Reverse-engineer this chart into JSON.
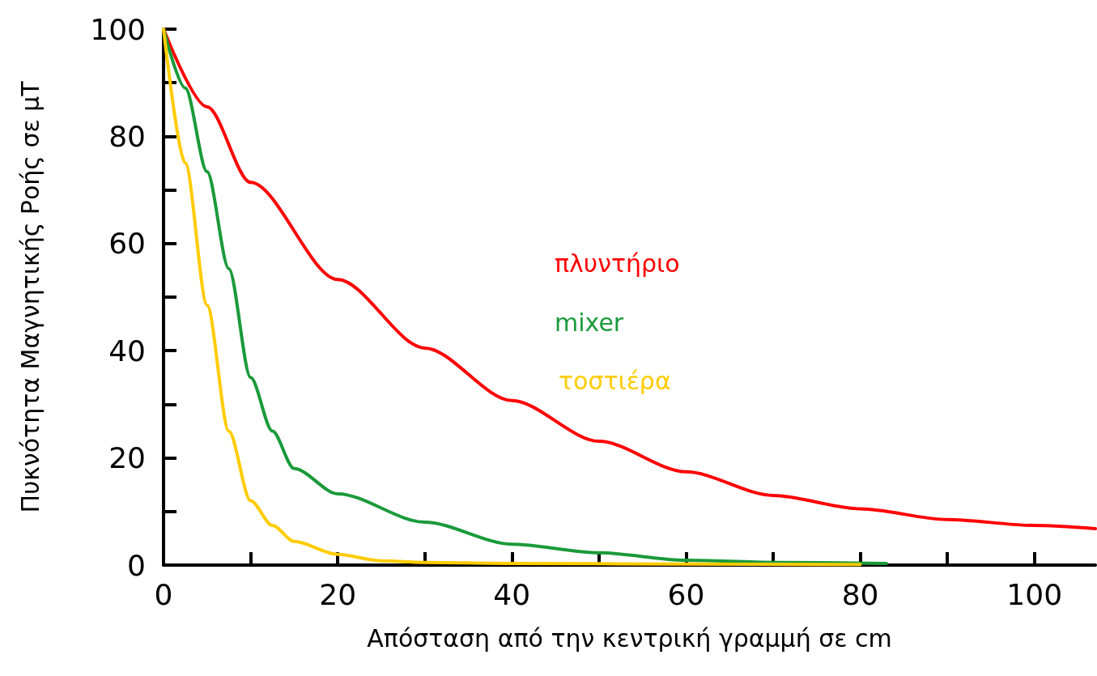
{
  "chart_data": {
    "type": "line",
    "xlabel": "Απόσταση από την κεντρική γραμμή σε cm",
    "ylabel": "Πυκνότητα Μαγνητικής Ροής σε μT",
    "xlim": [
      0,
      107
    ],
    "ylim": [
      0,
      100
    ],
    "xticks": [
      0,
      {
        "value": 10,
        "label": null
      },
      20,
      {
        "value": 30,
        "label": null
      },
      40,
      {
        "value": 50,
        "label": null
      },
      60,
      {
        "value": 70,
        "label": null
      },
      80,
      {
        "value": 90,
        "label": null
      },
      100
    ],
    "yticks": [
      0,
      {
        "value": 10,
        "label": null
      },
      20,
      {
        "value": 30,
        "label": null
      },
      40,
      {
        "value": 50,
        "label": null
      },
      60,
      {
        "value": 70,
        "label": null
      },
      80,
      {
        "value": 90,
        "label": null
      },
      100
    ],
    "grid": false,
    "legend": false,
    "marker": "none",
    "line_style": "solid",
    "series": [
      {
        "name": "πλυντήριο",
        "color": "#ff0000",
        "x": [
          0,
          5,
          10,
          20,
          30,
          40,
          50,
          60,
          70,
          80,
          90,
          100,
          107
        ],
        "values": [
          100,
          85.5,
          71.4,
          53.3,
          40.5,
          30.7,
          23.1,
          17.4,
          13,
          10.5,
          8.5,
          7.4,
          6.8
        ]
      },
      {
        "name": "mixer",
        "color": "#1a9a3a",
        "x": [
          0,
          2.5,
          5,
          7.5,
          10,
          12.5,
          15,
          20,
          30,
          40,
          50,
          60,
          70,
          83
        ],
        "values": [
          100,
          89,
          73.4,
          55.3,
          35,
          25,
          18,
          13.3,
          8,
          3.9,
          2.3,
          0.9,
          0.5,
          0.3
        ]
      },
      {
        "name": "τοστιέρα",
        "color": "#ffcc00",
        "x": [
          0,
          2.5,
          5,
          7.5,
          10,
          12.5,
          15,
          20,
          25,
          30,
          40,
          60,
          80
        ],
        "values": [
          100,
          75,
          48.5,
          25,
          12,
          7.4,
          4.4,
          2,
          0.8,
          0.5,
          0.3,
          0.2,
          0.1
        ]
      }
    ]
  }
}
